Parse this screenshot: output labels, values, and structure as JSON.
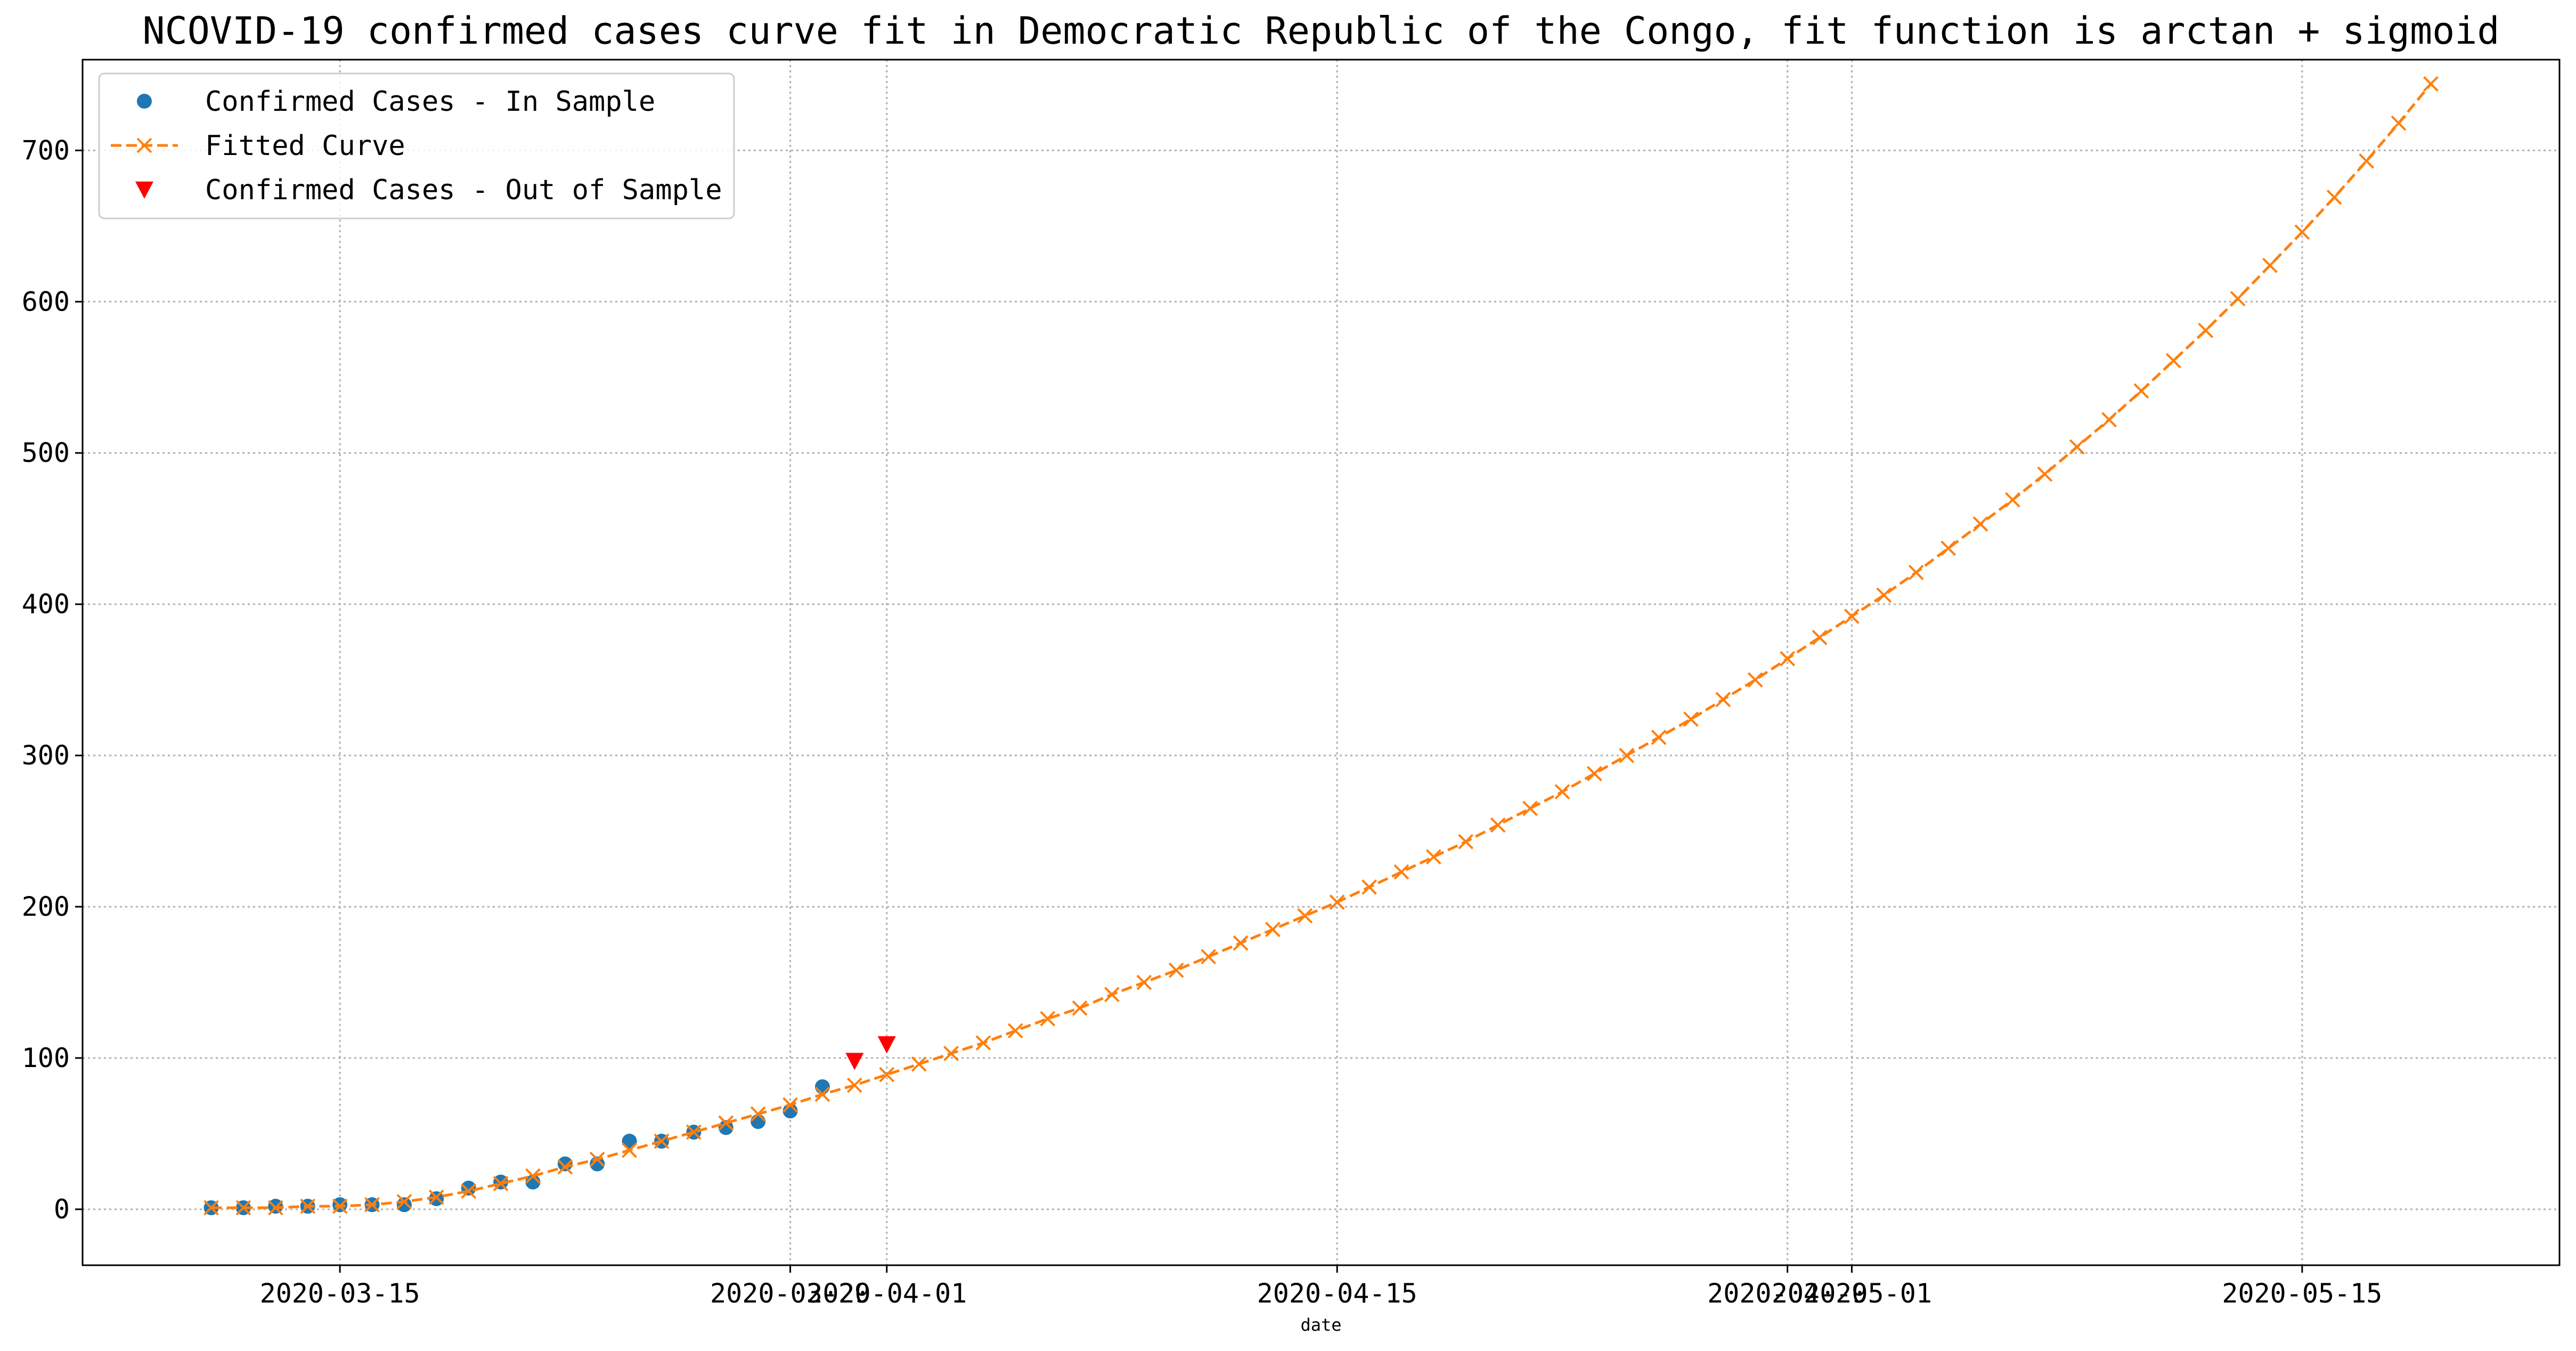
{
  "chart_data": {
    "type": "line",
    "title": "NCOVID-19 confirmed cases curve fit in Democratic Republic of the Congo, fit function is arctan + sigmoid",
    "xlabel": "date",
    "ylabel": "",
    "xlim": [
      "2020-03-07",
      "2020-05-23"
    ],
    "ylim": [
      -37,
      760
    ],
    "yticks": [
      0,
      100,
      200,
      300,
      400,
      500,
      600,
      700
    ],
    "xticks": [
      {
        "date": "2020-03-15",
        "label": "2020-03-15"
      },
      {
        "date": "2020-03-29",
        "label": "2020-03-29"
      },
      {
        "date": "2020-04-01",
        "label": "2020-04-01"
      },
      {
        "date": "2020-04-15",
        "label": "2020-04-15"
      },
      {
        "date": "2020-04-29",
        "label": "2020-04-29"
      },
      {
        "date": "2020-05-01",
        "label": "2020-05-01"
      },
      {
        "date": "2020-05-15",
        "label": "2020-05-15"
      }
    ],
    "grid": true,
    "legend_position": "top-left",
    "series": [
      {
        "name": "Confirmed Cases - In Sample",
        "kind": "scatter",
        "marker": "circle",
        "color": "#1f77b4",
        "x": [
          "2020-03-11",
          "2020-03-12",
          "2020-03-13",
          "2020-03-14",
          "2020-03-15",
          "2020-03-16",
          "2020-03-17",
          "2020-03-18",
          "2020-03-19",
          "2020-03-20",
          "2020-03-21",
          "2020-03-22",
          "2020-03-23",
          "2020-03-24",
          "2020-03-25",
          "2020-03-26",
          "2020-03-27",
          "2020-03-28",
          "2020-03-29",
          "2020-03-30"
        ],
        "y": [
          1,
          1,
          2,
          2,
          3,
          3,
          3,
          7,
          14,
          18,
          18,
          30,
          30,
          45,
          45,
          51,
          54,
          58,
          65,
          81
        ]
      },
      {
        "name": "Fitted Curve",
        "kind": "line",
        "marker": "x",
        "line_style": "dashed",
        "color": "#ff7f0e",
        "x": [
          "2020-03-11",
          "2020-03-12",
          "2020-03-13",
          "2020-03-14",
          "2020-03-15",
          "2020-03-16",
          "2020-03-17",
          "2020-03-18",
          "2020-03-19",
          "2020-03-20",
          "2020-03-21",
          "2020-03-22",
          "2020-03-23",
          "2020-03-24",
          "2020-03-25",
          "2020-03-26",
          "2020-03-27",
          "2020-03-28",
          "2020-03-29",
          "2020-03-30",
          "2020-03-31",
          "2020-04-01",
          "2020-04-02",
          "2020-04-03",
          "2020-04-04",
          "2020-04-05",
          "2020-04-06",
          "2020-04-07",
          "2020-04-08",
          "2020-04-09",
          "2020-04-10",
          "2020-04-11",
          "2020-04-12",
          "2020-04-13",
          "2020-04-14",
          "2020-04-15",
          "2020-04-16",
          "2020-04-17",
          "2020-04-18",
          "2020-04-19",
          "2020-04-20",
          "2020-04-21",
          "2020-04-22",
          "2020-04-23",
          "2020-04-24",
          "2020-04-25",
          "2020-04-26",
          "2020-04-27",
          "2020-04-28",
          "2020-04-29",
          "2020-04-30",
          "2020-05-01",
          "2020-05-02",
          "2020-05-03",
          "2020-05-04",
          "2020-05-05",
          "2020-05-06",
          "2020-05-07",
          "2020-05-08",
          "2020-05-09",
          "2020-05-10",
          "2020-05-11",
          "2020-05-12",
          "2020-05-13",
          "2020-05-14",
          "2020-05-15",
          "2020-05-16",
          "2020-05-17",
          "2020-05-18",
          "2020-05-19"
        ],
        "y": [
          1,
          1,
          1,
          2,
          2,
          3,
          5,
          8,
          12,
          17,
          22,
          28,
          33,
          39,
          45,
          51,
          57,
          63,
          69,
          76,
          82,
          89,
          96,
          103,
          110,
          118,
          126,
          133,
          142,
          150,
          158,
          167,
          176,
          185,
          194,
          203,
          213,
          223,
          233,
          243,
          254,
          265,
          276,
          288,
          300,
          312,
          324,
          337,
          350,
          364,
          378,
          392,
          406,
          421,
          437,
          453,
          469,
          486,
          504,
          522,
          541,
          561,
          581,
          602,
          624,
          646,
          669,
          693,
          718,
          744
        ]
      },
      {
        "name": "Confirmed Cases - Out of Sample",
        "kind": "scatter",
        "marker": "triangle-down",
        "color": "#ff0000",
        "x": [
          "2020-03-31",
          "2020-04-01"
        ],
        "y": [
          98,
          109
        ]
      }
    ]
  }
}
